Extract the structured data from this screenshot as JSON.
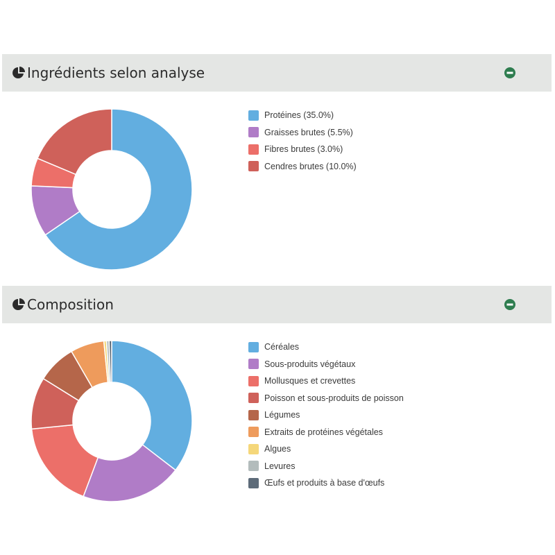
{
  "colors": {
    "header_bg": "#e4e6e4",
    "collapse_button": "#2e7d4f",
    "icon": "#2b2b2b"
  },
  "panels": [
    {
      "id": "analysis",
      "title": "Ingrédients selon analyse",
      "icon": "pie-chart-icon",
      "collapse_icon": "minus-circle-icon"
    },
    {
      "id": "composition",
      "title": "Composition",
      "icon": "pie-chart-icon",
      "collapse_icon": "minus-circle-icon"
    }
  ],
  "chart_data": [
    {
      "type": "pie",
      "donut": true,
      "legend_position": "right",
      "categories": [
        "Protéines (35.0%)",
        "Graisses brutes (5.5%)",
        "Fibres brutes (3.0%)",
        "Cendres brutes (10.0%)"
      ],
      "values": [
        35.0,
        5.5,
        3.0,
        10.0
      ],
      "colors": [
        "#62aee0",
        "#b07cc7",
        "#ec6f69",
        "#cf615a"
      ]
    },
    {
      "type": "pie",
      "donut": true,
      "legend_position": "right",
      "categories": [
        "Céréales",
        "Sous-produits végétaux",
        "Mollusques et crevettes",
        "Poisson et sous-produits de poisson",
        "Légumes",
        "Extraits de protéines végétales",
        "Algues",
        "Levures",
        "Œufs et produits à base d'œufs"
      ],
      "values": [
        34.0,
        19.5,
        17.0,
        10.0,
        7.5,
        6.5,
        0.5,
        0.5,
        0.5
      ],
      "colors": [
        "#62aee0",
        "#b07cc7",
        "#ec6f69",
        "#cf615a",
        "#b5664a",
        "#ee9b5c",
        "#f5d77a",
        "#b3bcbc",
        "#5d6b79"
      ]
    }
  ]
}
